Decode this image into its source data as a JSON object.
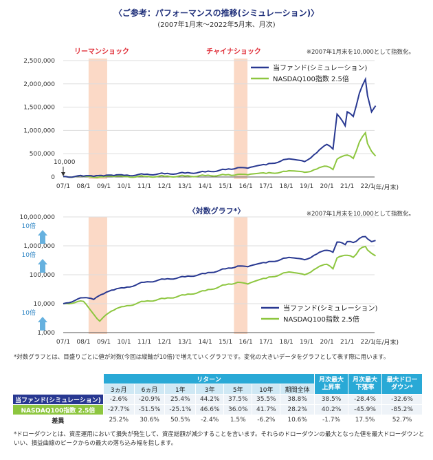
{
  "title": "〈ご参考：パフォーマンスの推移(シミュレーション)〉",
  "subtitle": "(2007年1月末～2022年5月末、月次)",
  "colors": {
    "fund": "#283891",
    "nasdaq": "#8dc63f",
    "shade": "#fbd9c6",
    "annotation": "#e0303a",
    "header": "#29a9d6"
  },
  "chart_data": [
    {
      "type": "line",
      "note": "※2007年1月末を10,000として指数化。",
      "annotations": [
        "リーマンショック",
        "チャイナショック"
      ],
      "start_label": "10,000",
      "shaded_periods": [
        [
          "2008-04",
          "2009-03"
        ],
        [
          "2015-06",
          "2016-02"
        ]
      ],
      "x_ticks": [
        "07/1",
        "08/1",
        "09/1",
        "10/1",
        "11/1",
        "12/1",
        "13/1",
        "14/1",
        "15/1",
        "16/1",
        "17/1",
        "18/1",
        "19/1",
        "20/1",
        "21/1",
        "22/1"
      ],
      "x_unit": "(年/月末)",
      "y_ticks": [
        "0",
        "500,000",
        "1,000,000",
        "1,500,000",
        "2,000,000",
        "2,500,000"
      ],
      "ylim": [
        0,
        2500000
      ],
      "series": [
        {
          "name": "当ファンド(シミュレーション)",
          "key": "fund",
          "x": [
            2007.0,
            2008.0,
            2008.5,
            2009.0,
            2009.5,
            2010.0,
            2011.0,
            2012.0,
            2013.0,
            2014.0,
            2015.0,
            2015.6,
            2016.1,
            2017.0,
            2018.0,
            2018.9,
            2019.5,
            2020.0,
            2020.3,
            2020.5,
            2020.9,
            2021.0,
            2021.3,
            2021.6,
            2021.9,
            2022.0,
            2022.2,
            2022.4
          ],
          "values": [
            10000,
            16000,
            14000,
            22000,
            30000,
            35000,
            55000,
            70000,
            85000,
            110000,
            160000,
            200000,
            190000,
            260000,
            380000,
            330000,
            520000,
            700000,
            600000,
            1350000,
            1100000,
            1400000,
            1300000,
            1800000,
            2100000,
            1750000,
            1400000,
            1530000
          ]
        },
        {
          "name": "NASDAQ100指数 2.5倍",
          "key": "nasdaq",
          "x": [
            2007.0,
            2008.0,
            2008.8,
            2009.0,
            2009.5,
            2010.0,
            2011.0,
            2012.0,
            2013.0,
            2014.0,
            2015.0,
            2015.6,
            2016.1,
            2017.0,
            2018.0,
            2018.9,
            2019.5,
            2020.0,
            2020.3,
            2020.5,
            2021.0,
            2021.3,
            2021.6,
            2021.9,
            2022.0,
            2022.2,
            2022.4
          ],
          "values": [
            10000,
            12000,
            2500,
            3500,
            6000,
            8000,
            12000,
            15000,
            20000,
            28000,
            45000,
            55000,
            48000,
            75000,
            120000,
            100000,
            170000,
            230000,
            160000,
            380000,
            470000,
            400000,
            750000,
            950000,
            720000,
            550000,
            450000
          ]
        }
      ]
    },
    {
      "type": "line",
      "title": "〈対数グラフ*〉",
      "note": "※2007年1月末を10,000として指数化。",
      "scale": "log",
      "x_ticks": [
        "07/1",
        "08/1",
        "09/1",
        "10/1",
        "11/1",
        "12/1",
        "13/1",
        "14/1",
        "15/1",
        "16/1",
        "17/1",
        "18/1",
        "19/1",
        "20/1",
        "21/1",
        "22/1"
      ],
      "x_unit": "(年/月末)",
      "y_ticks": [
        "1,000",
        "10,000",
        "100,000",
        "1,000,000",
        "10,000,000"
      ],
      "ylim": [
        1000,
        10000000
      ],
      "tenfold_label": "10倍",
      "series": [
        {
          "name": "当ファンド(シミュレーション)",
          "key": "fund"
        },
        {
          "name": "NASDAQ100指数 2.5倍",
          "key": "nasdaq"
        }
      ]
    }
  ],
  "log_note": "*対数グラフとは、目盛りごとに値が対数(今回は縦軸が10倍)で増えていくグラフです。変化の大きいデータをグラフとして表す際に用います。",
  "table": {
    "group_header": "リターン",
    "columns": [
      "3ヵ月",
      "6ヵ月",
      "1年",
      "3年",
      "5年",
      "10年",
      "期間全体"
    ],
    "extra_headers": [
      "月次最大上昇率",
      "月次最大下落率",
      "最大ドローダウン*"
    ],
    "rows": [
      {
        "label": "当ファンド(シミュレーション)",
        "values": [
          "-2.6%",
          "-20.9%",
          "25.4%",
          "44.2%",
          "37.5%",
          "35.5%",
          "38.8%",
          "38.5%",
          "-28.4%",
          "-32.6%"
        ]
      },
      {
        "label": "NASDAQ100指数 2.5倍",
        "values": [
          "-27.7%",
          "-51.5%",
          "-25.1%",
          "46.6%",
          "36.0%",
          "41.7%",
          "28.2%",
          "40.2%",
          "-45.9%",
          "-85.2%"
        ]
      },
      {
        "label": "差異",
        "values": [
          "25.2%",
          "30.6%",
          "50.5%",
          "-2.4%",
          "1.5%",
          "-6.2%",
          "10.6%",
          "-1.7%",
          "17.5%",
          "52.7%"
        ]
      }
    ]
  },
  "dd_note": "*ドローダウンとは、資産運用において損失が発生して、資産総額が減少することを言います。それらのドローダウンの最大となった値を最大ドローダウンといい、損益曲線のピークからの最大の落ち込み幅を指します。"
}
